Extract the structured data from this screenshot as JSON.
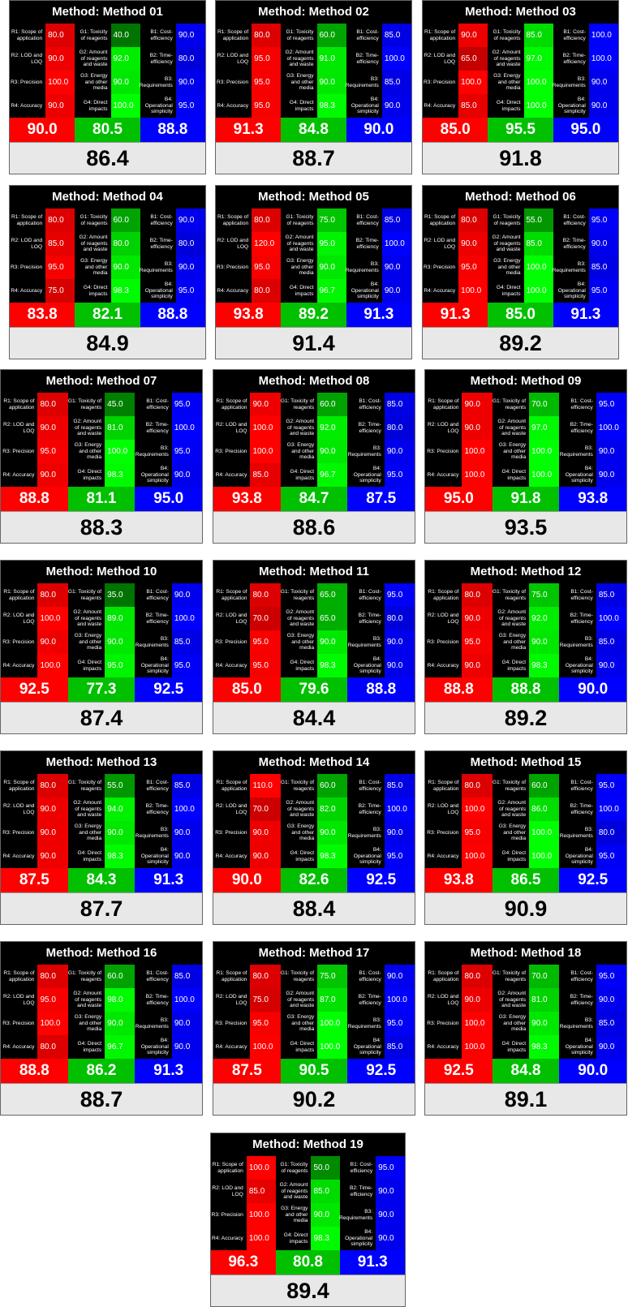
{
  "title_prefix": "Method: ",
  "criteria": {
    "red": [
      "R1: Scope of application",
      "R2: LOD and LOQ",
      "R3: Precision",
      "R4: Accuracy"
    ],
    "green": [
      "G1: Toxicity of reagents",
      "G2: Amount of reagents and waste",
      "G3: Energy and other media",
      "G4: Direct impacts"
    ],
    "blue": [
      "B1: Cost-efficiency",
      "B2: Time-efficiency",
      "B3: Requirements",
      "B4: Operational simplicity"
    ]
  },
  "colors": {
    "red": "#ff0000",
    "green": "#00c000",
    "blue": "#0000ff",
    "overall_bg": "#e8e8e8"
  },
  "methods": [
    {
      "name": "Method 01",
      "r": [
        "80.0",
        "90.0",
        "100.0",
        "90.0"
      ],
      "g": [
        "40.0",
        "92.0",
        "90.0",
        "100.0"
      ],
      "b": [
        "90.0",
        "80.0",
        "90.0",
        "95.0"
      ],
      "totals": [
        "90.0",
        "80.5",
        "88.8"
      ],
      "overall": "86.4"
    },
    {
      "name": "Method 02",
      "r": [
        "80.0",
        "95.0",
        "95.0",
        "95.0"
      ],
      "g": [
        "60.0",
        "91.0",
        "90.0",
        "98.3"
      ],
      "b": [
        "85.0",
        "100.0",
        "85.0",
        "90.0"
      ],
      "totals": [
        "91.3",
        "84.8",
        "90.0"
      ],
      "overall": "88.7"
    },
    {
      "name": "Method 03",
      "r": [
        "90.0",
        "65.0",
        "100.0",
        "85.0"
      ],
      "g": [
        "85.0",
        "97.0",
        "100.0",
        "100.0"
      ],
      "b": [
        "100.0",
        "100.0",
        "90.0",
        "90.0"
      ],
      "totals": [
        "85.0",
        "95.5",
        "95.0"
      ],
      "overall": "91.8"
    },
    {
      "name": "Method 04",
      "r": [
        "80.0",
        "85.0",
        "95.0",
        "75.0"
      ],
      "g": [
        "60.0",
        "80.0",
        "90.0",
        "98.3"
      ],
      "b": [
        "90.0",
        "80.0",
        "90.0",
        "95.0"
      ],
      "totals": [
        "83.8",
        "82.1",
        "88.8"
      ],
      "overall": "84.9"
    },
    {
      "name": "Method 05",
      "r": [
        "80.0",
        "120.0",
        "95.0",
        "80.0"
      ],
      "g": [
        "75.0",
        "95.0",
        "90.0",
        "96.7"
      ],
      "b": [
        "85.0",
        "100.0",
        "90.0",
        "90.0"
      ],
      "totals": [
        "93.8",
        "89.2",
        "91.3"
      ],
      "overall": "91.4"
    },
    {
      "name": "Method 06",
      "r": [
        "80.0",
        "90.0",
        "95.0",
        "100.0"
      ],
      "g": [
        "55.0",
        "85.0",
        "100.0",
        "100.0"
      ],
      "b": [
        "95.0",
        "90.0",
        "85.0",
        "95.0"
      ],
      "totals": [
        "91.3",
        "85.0",
        "91.3"
      ],
      "overall": "89.2"
    },
    {
      "name": "Method 07",
      "r": [
        "80.0",
        "90.0",
        "95.0",
        "90.0"
      ],
      "g": [
        "45.0",
        "81.0",
        "100.0",
        "98.3"
      ],
      "b": [
        "95.0",
        "100.0",
        "95.0",
        "90.0"
      ],
      "totals": [
        "88.8",
        "81.1",
        "95.0"
      ],
      "overall": "88.3"
    },
    {
      "name": "Method 08",
      "r": [
        "90.0",
        "100.0",
        "100.0",
        "85.0"
      ],
      "g": [
        "60.0",
        "92.0",
        "90.0",
        "96.7"
      ],
      "b": [
        "85.0",
        "80.0",
        "90.0",
        "95.0"
      ],
      "totals": [
        "93.8",
        "84.7",
        "87.5"
      ],
      "overall": "88.6"
    },
    {
      "name": "Method 09",
      "r": [
        "90.0",
        "90.0",
        "100.0",
        "100.0"
      ],
      "g": [
        "70.0",
        "97.0",
        "100.0",
        "100.0"
      ],
      "b": [
        "95.0",
        "100.0",
        "90.0",
        "90.0"
      ],
      "totals": [
        "95.0",
        "91.8",
        "93.8"
      ],
      "overall": "93.5"
    },
    {
      "name": "Method 10",
      "r": [
        "80.0",
        "100.0",
        "90.0",
        "100.0"
      ],
      "g": [
        "35.0",
        "89.0",
        "90.0",
        "95.0"
      ],
      "b": [
        "90.0",
        "100.0",
        "85.0",
        "95.0"
      ],
      "totals": [
        "92.5",
        "77.3",
        "92.5"
      ],
      "overall": "87.4"
    },
    {
      "name": "Method 11",
      "r": [
        "80.0",
        "70.0",
        "95.0",
        "95.0"
      ],
      "g": [
        "65.0",
        "65.0",
        "90.0",
        "98.3"
      ],
      "b": [
        "95.0",
        "80.0",
        "90.0",
        "90.0"
      ],
      "totals": [
        "85.0",
        "79.6",
        "88.8"
      ],
      "overall": "84.4"
    },
    {
      "name": "Method 12",
      "r": [
        "80.0",
        "90.0",
        "95.0",
        "90.0"
      ],
      "g": [
        "75.0",
        "92.0",
        "90.0",
        "98.3"
      ],
      "b": [
        "85.0",
        "100.0",
        "85.0",
        "90.0"
      ],
      "totals": [
        "88.8",
        "88.8",
        "90.0"
      ],
      "overall": "89.2"
    },
    {
      "name": "Method 13",
      "r": [
        "80.0",
        "90.0",
        "90.0",
        "90.0"
      ],
      "g": [
        "55.0",
        "94.0",
        "90.0",
        "98.3"
      ],
      "b": [
        "85.0",
        "100.0",
        "90.0",
        "90.0"
      ],
      "totals": [
        "87.5",
        "84.3",
        "91.3"
      ],
      "overall": "87.7"
    },
    {
      "name": "Method 14",
      "r": [
        "110.0",
        "70.0",
        "90.0",
        "90.0"
      ],
      "g": [
        "60.0",
        "82.0",
        "90.0",
        "98.3"
      ],
      "b": [
        "85.0",
        "100.0",
        "90.0",
        "95.0"
      ],
      "totals": [
        "90.0",
        "82.6",
        "92.5"
      ],
      "overall": "88.4"
    },
    {
      "name": "Method 15",
      "r": [
        "80.0",
        "100.0",
        "95.0",
        "100.0"
      ],
      "g": [
        "60.0",
        "86.0",
        "100.0",
        "100.0"
      ],
      "b": [
        "95.0",
        "100.0",
        "80.0",
        "95.0"
      ],
      "totals": [
        "93.8",
        "86.5",
        "92.5"
      ],
      "overall": "90.9"
    },
    {
      "name": "Method 16",
      "r": [
        "80.0",
        "95.0",
        "100.0",
        "80.0"
      ],
      "g": [
        "60.0",
        "98.0",
        "90.0",
        "96.7"
      ],
      "b": [
        "85.0",
        "100.0",
        "90.0",
        "90.0"
      ],
      "totals": [
        "88.8",
        "86.2",
        "91.3"
      ],
      "overall": "88.7"
    },
    {
      "name": "Method 17",
      "r": [
        "80.0",
        "75.0",
        "95.0",
        "100.0"
      ],
      "g": [
        "75.0",
        "87.0",
        "100.0",
        "100.0"
      ],
      "b": [
        "90.0",
        "100.0",
        "95.0",
        "85.0"
      ],
      "totals": [
        "87.5",
        "90.5",
        "92.5"
      ],
      "overall": "90.2"
    },
    {
      "name": "Method 18",
      "r": [
        "80.0",
        "90.0",
        "100.0",
        "100.0"
      ],
      "g": [
        "70.0",
        "81.0",
        "90.0",
        "98.3"
      ],
      "b": [
        "95.0",
        "90.0",
        "85.0",
        "90.0"
      ],
      "totals": [
        "92.5",
        "84.8",
        "90.0"
      ],
      "overall": "89.1"
    },
    {
      "name": "Method 19",
      "r": [
        "100.0",
        "85.0",
        "100.0",
        "100.0"
      ],
      "g": [
        "50.0",
        "85.0",
        "90.0",
        "98.3"
      ],
      "b": [
        "95.0",
        "90.0",
        "90.0",
        "90.0"
      ],
      "totals": [
        "96.3",
        "80.8",
        "91.3"
      ],
      "overall": "89.4"
    }
  ]
}
